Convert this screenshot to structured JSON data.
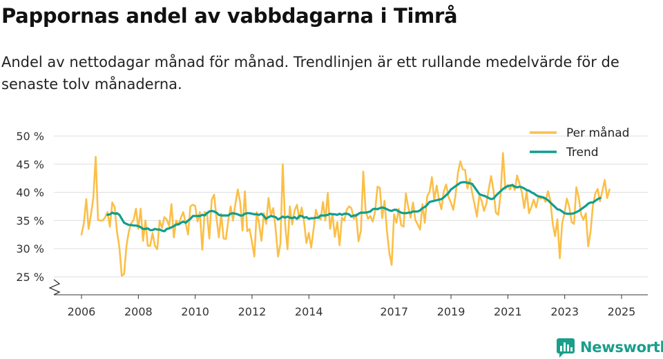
{
  "header": {
    "title": "Pappornas andel av vabbdagarna i Timrå",
    "subtitle": "Andel av nettodagar månad för månad. Trendlinjen är ett rullande medelvärde för de senaste tolv månaderna."
  },
  "brand": {
    "name": "Newsworthy",
    "icon": "newsworthy-logo-icon",
    "color": "#1a9e8c"
  },
  "colors": {
    "monthly": "#fbbf47",
    "trend": "#0f9e8e",
    "grid": "#dddddd",
    "axis": "#333333"
  },
  "chart_data": {
    "type": "line",
    "title": "Pappornas andel av vabbdagarna i Timrå",
    "xlabel": "",
    "ylabel": "",
    "x_range": [
      2006,
      2025.4
    ],
    "ylim": [
      22,
      50
    ],
    "y_ticks": [
      {
        "value": 25,
        "label": "25 %"
      },
      {
        "value": 30,
        "label": "30 %"
      },
      {
        "value": 35,
        "label": "35 %"
      },
      {
        "value": 40,
        "label": "40 %"
      },
      {
        "value": 45,
        "label": "45 %"
      },
      {
        "value": 50,
        "label": "50 %"
      }
    ],
    "x_ticks": [
      {
        "value": 2006,
        "label": "2006"
      },
      {
        "value": 2008,
        "label": "2008"
      },
      {
        "value": 2010,
        "label": "2010"
      },
      {
        "value": 2012,
        "label": "2012"
      },
      {
        "value": 2014,
        "label": "2014"
      },
      {
        "value": 2017,
        "label": "2017"
      },
      {
        "value": 2019,
        "label": "2019"
      },
      {
        "value": 2021,
        "label": "2021"
      },
      {
        "value": 2023,
        "label": "2023"
      },
      {
        "value": 2025,
        "label": "2025"
      }
    ],
    "axis_break": true,
    "grid": true,
    "legend_position": "top-right",
    "series": [
      {
        "name": "Per månad",
        "x0": 2006.0,
        "step": 0.0833,
        "values": [
          32.5,
          34.5,
          38.8,
          33.5,
          36,
          39,
          46.3,
          35.1,
          35,
          35,
          35.6,
          36.5,
          33.9,
          38.2,
          37.4,
          33,
          30.2,
          25.2,
          25.5,
          30.5,
          33.1,
          34.5,
          35.1,
          37.1,
          33.5,
          37.1,
          31.4,
          35,
          30.5,
          30.5,
          32.8,
          30.5,
          29.9,
          35,
          33.7,
          35.6,
          35.2,
          34,
          37.9,
          32,
          35,
          34.3,
          35.5,
          36.5,
          34.5,
          32.5,
          37.5,
          37.8,
          37.6,
          34.8,
          36.5,
          29.8,
          36.5,
          36.3,
          31.8,
          38.7,
          39.6,
          35.5,
          32,
          36.2,
          31.8,
          31.7,
          35.1,
          37.5,
          35,
          37.9,
          40.5,
          38.3,
          33.2,
          40.2,
          33.1,
          33.5,
          31.2,
          28.6,
          36.5,
          34.5,
          31.4,
          36.3,
          34.4,
          39,
          35.9,
          37.2,
          33.5,
          28.6,
          30.9,
          45,
          34.4,
          29.9,
          37.5,
          34.3,
          36.8,
          37.8,
          35.3,
          37.3,
          34.7,
          31,
          32.8,
          30.2,
          33.4,
          36.9,
          35.5,
          35.2,
          38.3,
          35,
          39.9,
          33.5,
          36.2,
          32.1,
          34.7,
          30.6,
          35.5,
          35,
          36.9,
          37.5,
          37.2,
          35.3,
          36.1,
          31.3,
          33.2,
          43.7,
          36.8,
          35.3,
          35.8,
          34.8,
          36.6,
          41,
          40.8,
          35.4,
          38.5,
          33.1,
          29.3,
          27.1,
          36.1,
          34.6,
          37.1,
          34.2,
          33.9,
          39.8,
          37.4,
          35.5,
          38.2,
          35.1,
          34.3,
          33.4,
          37.9,
          34.6,
          39.3,
          40.1,
          42.7,
          38.7,
          41.2,
          38.6,
          37,
          40.2,
          41.4,
          39.2,
          38.2,
          36.9,
          39.6,
          43.5,
          45.5,
          44.1,
          44,
          40.7,
          42.4,
          39.9,
          37.9,
          35.7,
          39.4,
          38.5,
          36.7,
          38,
          40.6,
          42.9,
          40.3,
          36.4,
          36,
          39.6,
          47,
          40.6,
          41.3,
          40.5,
          41.4,
          40.4,
          43,
          41.5,
          40,
          37.2,
          40.2,
          36.3,
          37.4,
          38.7,
          37.3,
          39.2,
          38.9,
          39.1,
          38.3,
          40.2,
          38.6,
          34.5,
          32.2,
          35.2,
          28.3,
          34.5,
          36.3,
          38.9,
          37.4,
          34.7,
          34.4,
          40.9,
          39.1,
          36.1,
          35.1,
          36.3,
          30.4,
          33,
          37.7,
          39.8,
          40.6,
          38.4,
          40.3,
          42.2,
          39,
          40.5
        ]
      },
      {
        "name": "Trend",
        "x0": 2006.917,
        "step": 0.0833,
        "values": [
          36,
          36.1,
          36.4,
          36.2,
          36.3,
          36,
          35.3,
          34.6,
          34.4,
          34.2,
          34.2,
          34.1,
          34.1,
          34,
          33.8,
          33.5,
          33.5,
          33.6,
          33.3,
          33.3,
          33.5,
          33.4,
          33.4,
          33.2,
          33.1,
          33.5,
          33.6,
          33.8,
          34,
          34.3,
          34.3,
          34.6,
          34.8,
          34.6,
          35,
          35.3,
          35.8,
          35.8,
          35.8,
          35.8,
          36,
          35.9,
          36.3,
          36.6,
          36.7,
          36.6,
          36.4,
          36,
          35.9,
          35.9,
          35.9,
          35.9,
          36.2,
          36.3,
          36.2,
          36.1,
          35.9,
          35.9,
          36.2,
          36.3,
          36.3,
          36.2,
          36.1,
          36.1,
          36,
          36.2,
          35.8,
          35.3,
          35.6,
          35.8,
          35.7,
          35.6,
          35.2,
          35.4,
          35.7,
          35.5,
          35.7,
          35.5,
          35.4,
          35.6,
          35.3,
          35.8,
          35.8,
          35.5,
          35.6,
          35.3,
          35.4,
          35.4,
          35.5,
          35.5,
          35.9,
          35.9,
          35.9,
          36,
          36.2,
          36.1,
          36.1,
          36,
          36.2,
          36,
          36.2,
          36.2,
          36.1,
          35.7,
          35.9,
          35.9,
          36.2,
          36.4,
          36.4,
          36.4,
          36.5,
          36.6,
          37,
          37.1,
          37,
          37.2,
          37.3,
          37.2,
          37,
          36.8,
          36.7,
          36.9,
          36.9,
          36.6,
          36.4,
          36.3,
          36.3,
          36.4,
          36.4,
          36.6,
          36.6,
          36.6,
          36.8,
          37.2,
          37.4,
          37.8,
          38.3,
          38.4,
          38.5,
          38.6,
          38.7,
          38.8,
          39.1,
          39.5,
          39.9,
          40.5,
          40.8,
          41.1,
          41.4,
          41.7,
          41.8,
          41.8,
          41.7,
          41.6,
          41.5,
          40.9,
          40.3,
          39.7,
          39.5,
          39.4,
          39.2,
          39,
          38.8,
          38.9,
          39.4,
          39.8,
          40.2,
          40.6,
          40.9,
          41.1,
          41.2,
          41.3,
          41,
          40.9,
          41,
          40.9,
          40.7,
          40.4,
          40.3,
          40,
          39.8,
          39.5,
          39.3,
          39.2,
          39.1,
          38.9,
          38.6,
          38.2,
          37.8,
          37.4,
          37,
          36.9,
          36.6,
          36.3,
          36.2,
          36.2,
          36.2,
          36.3,
          36.5,
          36.7,
          37,
          37.3,
          37.6,
          38,
          38.2,
          38.2,
          38.5,
          38.8,
          39
        ]
      }
    ]
  }
}
